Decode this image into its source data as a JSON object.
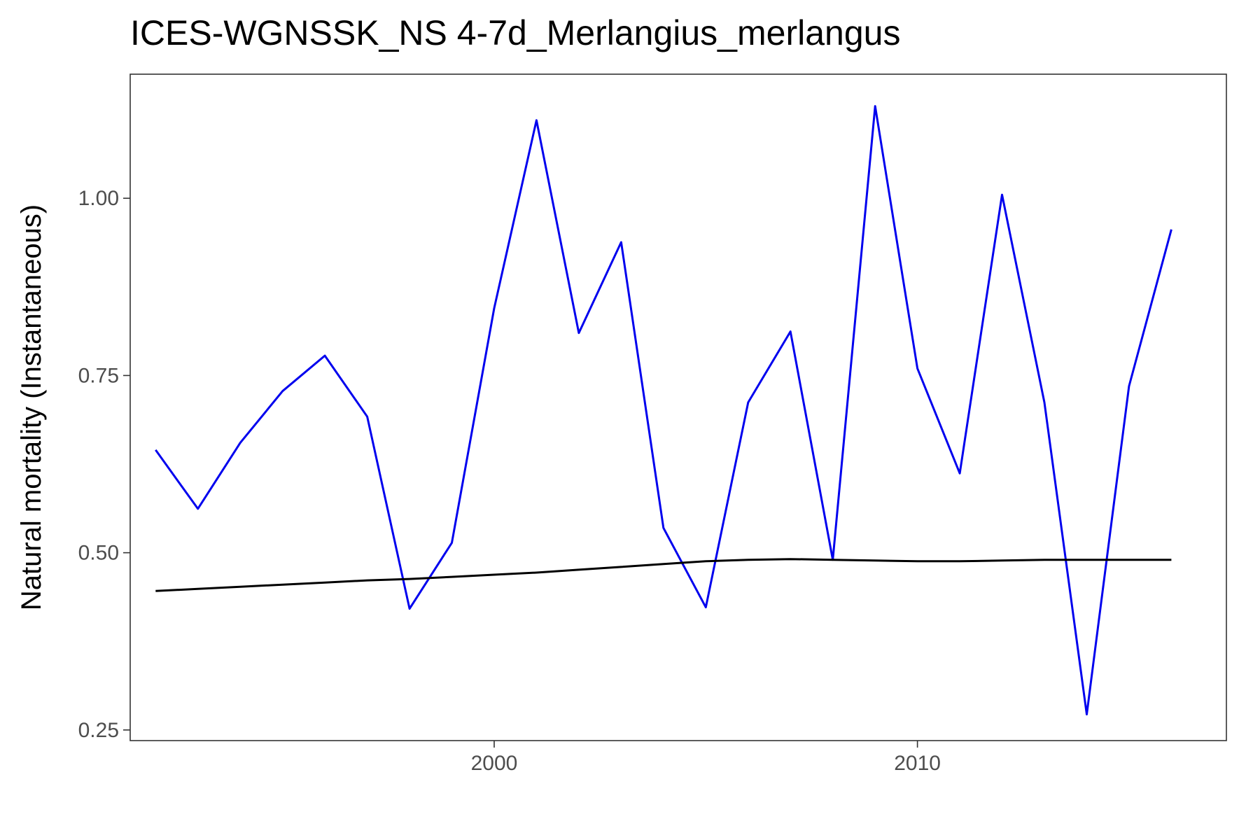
{
  "chart_data": {
    "type": "line",
    "title": "ICES-WGNSSK_NS 4-7d_Merlangius_merlangus",
    "xlabel": "",
    "ylabel": "Natural mortality (Instantaneous)",
    "xlim": [
      1991.4,
      2017.3
    ],
    "ylim": [
      0.235,
      1.175
    ],
    "x_ticks": [
      2000,
      2010
    ],
    "x_tick_labels": [
      "2000",
      "2010"
    ],
    "y_ticks": [
      0.25,
      0.5,
      0.75,
      1.0
    ],
    "y_tick_labels": [
      "0.25",
      "0.50",
      "0.75",
      "1.00"
    ],
    "grid": false,
    "legend": "none",
    "x": [
      1992,
      1993,
      1994,
      1995,
      1996,
      1997,
      1998,
      1999,
      2000,
      2001,
      2002,
      2003,
      2004,
      2005,
      2006,
      2007,
      2008,
      2009,
      2010,
      2011,
      2012,
      2013,
      2014,
      2015,
      2016
    ],
    "series": [
      {
        "color": "#0000ee",
        "values": [
          0.645,
          0.562,
          0.655,
          0.728,
          0.778,
          0.692,
          0.421,
          0.514,
          0.845,
          1.11,
          0.81,
          0.938,
          0.535,
          0.423,
          0.712,
          0.812,
          0.49,
          1.13,
          0.76,
          0.612,
          1.005,
          0.712,
          0.272,
          0.735,
          0.956
        ]
      },
      {
        "color": "#000000",
        "values": [
          0.446,
          0.449,
          0.452,
          0.455,
          0.458,
          0.461,
          0.463,
          0.466,
          0.469,
          0.472,
          0.476,
          0.48,
          0.484,
          0.488,
          0.49,
          0.491,
          0.49,
          0.489,
          0.488,
          0.488,
          0.489,
          0.49,
          0.49,
          0.49,
          0.49
        ]
      }
    ]
  }
}
